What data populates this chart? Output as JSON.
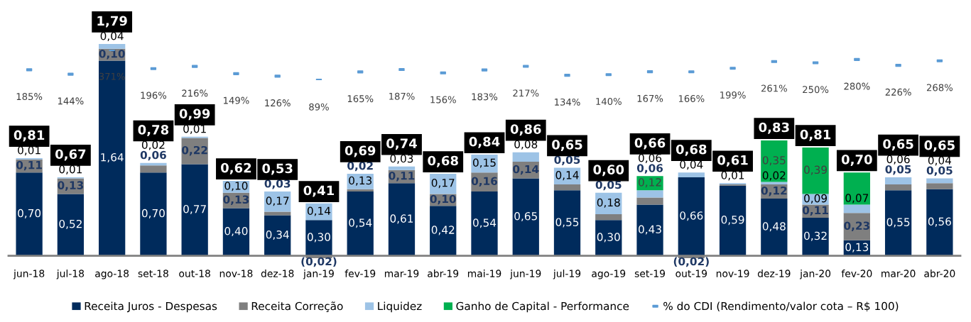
{
  "chart_data": {
    "type": "bar",
    "stacked": true,
    "categories": [
      "jun-18",
      "jul-18",
      "ago-18",
      "set-18",
      "out-18",
      "nov-18",
      "dez-18",
      "jan-19",
      "fev-19",
      "mar-19",
      "abr-19",
      "mai-19",
      "jun-19",
      "jul-19",
      "ago-19",
      "set-19",
      "out-19",
      "nov-19",
      "dez-19",
      "jan-20",
      "fev-20",
      "mar-20",
      "abr-20"
    ],
    "series": [
      {
        "name": "Receita Juros - Despesas",
        "color": "#002b5c",
        "values": [
          0.7,
          0.52,
          1.64,
          0.7,
          0.77,
          0.4,
          0.34,
          0.3,
          0.54,
          0.61,
          0.42,
          0.54,
          0.65,
          0.55,
          0.3,
          0.43,
          0.66,
          0.59,
          0.48,
          0.32,
          0.13,
          0.55,
          0.56
        ],
        "value_labels": [
          "0,70",
          "0,52",
          "1,64",
          "0,70",
          "0,77",
          "0,40",
          "0,34",
          "0,30",
          "0,54",
          "0,61",
          "0,42",
          "0,54",
          "0,65",
          "0,55",
          "0,30",
          "0,43",
          "0,66",
          "0,59",
          "0,48",
          "0,32",
          "0,13",
          "0,55",
          "0,56"
        ]
      },
      {
        "name": "Receita Correção",
        "color": "#7f7f7f",
        "values": [
          0.11,
          0.13,
          0.1,
          0.06,
          0.22,
          0.13,
          0.03,
          -0.02,
          0.02,
          0.11,
          0.1,
          0.16,
          0.14,
          0.05,
          0.05,
          0.06,
          -0.02,
          0.01,
          0.12,
          0.11,
          0.23,
          0.05,
          0.05
        ],
        "value_labels": [
          "0,11",
          "0,13",
          "0,10",
          "0,06",
          "0,22",
          "0,13",
          "0,03",
          "(0,02)",
          "0,02",
          "0,11",
          "0,10",
          "0,16",
          "0,14",
          "0,05",
          "0,05",
          "0,06",
          "(0,02)",
          null,
          "0,12",
          "0,11",
          "0,23",
          "0,05",
          "0,05"
        ]
      },
      {
        "name": "Liquidez",
        "color": "#9dc3e6",
        "values": [
          0.01,
          0.01,
          0.04,
          0.02,
          0.01,
          0.1,
          0.17,
          0.14,
          0.13,
          0.03,
          0.17,
          0.15,
          0.08,
          0.14,
          0.18,
          0.06,
          0.04,
          0.01,
          0.02,
          0.09,
          0.07,
          0.06,
          0.04
        ],
        "value_labels": [
          "0,01",
          "0,01",
          "0,04",
          "0,02",
          "0,01",
          "0,10",
          "0,17",
          "0,14",
          "0,13",
          "0,03",
          "0,17",
          "0,15",
          "0,08",
          "0,14",
          "0,18",
          "0,06",
          "0,04",
          "0,01",
          "0,02",
          "0,09",
          "0,07",
          "0,06",
          "0,04"
        ]
      },
      {
        "name": "Ganho de Capital - Performance",
        "color": "#00b050",
        "values": [
          0,
          0,
          0,
          0,
          0,
          0,
          0,
          0,
          0,
          0,
          0,
          0,
          0,
          0,
          0,
          0.12,
          0,
          0,
          0.35,
          0.39,
          0.27,
          0,
          0
        ],
        "value_labels": [
          null,
          null,
          null,
          null,
          null,
          null,
          null,
          null,
          null,
          null,
          null,
          null,
          null,
          null,
          null,
          "0,12",
          null,
          null,
          "0,35",
          "0,39",
          null,
          null,
          null
        ]
      },
      {
        "name": "% do CDI (Rendimento/valor cota – R$ 100)",
        "type": "scatter",
        "axis": "y2",
        "marker": "square",
        "color": "#5b9bd5",
        "values": [
          185,
          144,
          371,
          196,
          216,
          149,
          126,
          89,
          165,
          187,
          156,
          183,
          217,
          134,
          140,
          167,
          166,
          199,
          261,
          250,
          280,
          226,
          268
        ],
        "value_labels": [
          "185%",
          "144%",
          "371%",
          "196%",
          "216%",
          "149%",
          "126%",
          "89%",
          "165%",
          "187%",
          "156%",
          "183%",
          "217%",
          "134%",
          "140%",
          "167%",
          "166%",
          "199%",
          "261%",
          "250%",
          "280%",
          "226%",
          "268%"
        ]
      }
    ],
    "annotations": [
      "0,81",
      "0,67",
      "1,79",
      "0,78",
      "0,99",
      "0,62",
      "0,53",
      "0,41",
      "0,69",
      "0,74",
      "0,68",
      "0,84",
      "0,86",
      "0,65",
      "0,60",
      "0,66",
      "0,68",
      "0,61",
      "0,83",
      "0,81",
      "0,70",
      "0,65",
      "0,65"
    ],
    "legend": "bottom",
    "grid": false,
    "tick_labels": "x"
  }
}
